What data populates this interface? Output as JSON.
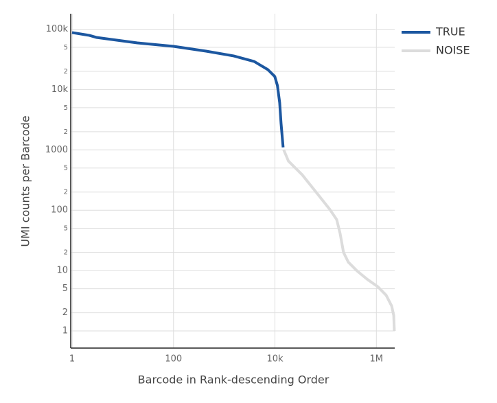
{
  "chart_data": {
    "type": "line",
    "x_label": "Barcode in Rank-descending Order",
    "y_label": "UMI counts per Barcode",
    "xscale": "log",
    "yscale": "log",
    "grid": true,
    "legend": "right",
    "xlim": [
      0.94,
      2300000
    ],
    "ylim": [
      0.52,
      180000
    ],
    "xticks": [
      1,
      100,
      {
        "value": 10000,
        "label": "10k"
      },
      {
        "value": 1000000,
        "label": "1M"
      }
    ],
    "yticks": [
      1,
      2,
      5,
      10,
      {
        "value": 20,
        "label": "2"
      },
      {
        "value": 50,
        "label": "5"
      },
      100,
      {
        "value": 200,
        "label": "2"
      },
      {
        "value": 500,
        "label": "5"
      },
      1000,
      {
        "value": 2000,
        "label": "2"
      },
      {
        "value": 5000,
        "label": "5"
      },
      {
        "value": 10000,
        "label": "10k"
      },
      {
        "value": 20000,
        "label": "2"
      },
      {
        "value": 50000,
        "label": "5"
      },
      {
        "value": 100000,
        "label": "100k"
      }
    ],
    "series": [
      {
        "name": "TRUE",
        "color": "#1c57a0",
        "x": [
          1,
          2.2,
          3,
          7.6,
          19.4,
          100,
          439,
          1530,
          3900,
          7280,
          9930,
          11200,
          12400,
          13200,
          14500
        ],
        "values": [
          87700,
          78800,
          73000,
          65700,
          59200,
          51900,
          43200,
          36000,
          29100,
          21300,
          16400,
          11600,
          6040,
          2750,
          1100
        ]
      },
      {
        "name": "NOISE",
        "color": "#dcdcdc",
        "x": [
          14900,
          18500,
          34600,
          64600,
          120000,
          165000,
          193000,
          225000,
          280000,
          420000,
          671000,
          1070000,
          1560000,
          2000000,
          2200000,
          2260000
        ],
        "values": [
          1000,
          650,
          385,
          200,
          104,
          70,
          41,
          20,
          13.8,
          9.8,
          7.1,
          5.4,
          3.9,
          2.6,
          1.8,
          1
        ]
      }
    ]
  }
}
